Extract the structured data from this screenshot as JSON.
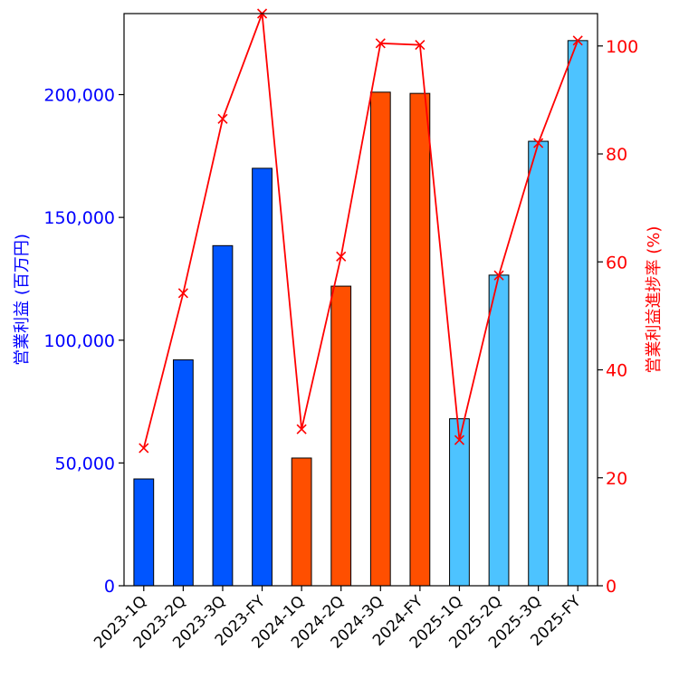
{
  "chart_data": {
    "type": "bar",
    "categories": [
      "2023-1Q",
      "2023-2Q",
      "2023-3Q",
      "2023-FY",
      "2024-1Q",
      "2024-2Q",
      "2024-3Q",
      "2024-FY",
      "2025-1Q",
      "2025-2Q",
      "2025-3Q",
      "2025-FY"
    ],
    "series": [
      {
        "type": "bar",
        "axis": "left",
        "values": [
          43500,
          92000,
          138500,
          170000,
          52000,
          122000,
          201000,
          200500,
          68000,
          126500,
          181000,
          222000
        ],
        "colors": [
          "#0055ff",
          "#0055ff",
          "#0055ff",
          "#0055ff",
          "#ff4f00",
          "#ff4f00",
          "#ff4f00",
          "#ff4f00",
          "#4dc3ff",
          "#4dc3ff",
          "#4dc3ff",
          "#4dc3ff"
        ]
      },
      {
        "type": "line",
        "axis": "right",
        "marker": "x",
        "color": "#ff0000",
        "values": [
          25.5,
          54.2,
          86.5,
          106.0,
          29.0,
          61.0,
          100.5,
          100.2,
          27.0,
          57.5,
          82.0,
          101.0
        ]
      }
    ],
    "ylabel": "営業利益 (百万円)",
    "y2label": "営業利益進捗率 (%)",
    "ylim": [
      0,
      233000
    ],
    "y2lim": [
      0,
      106
    ],
    "yticks": [
      0,
      50000,
      100000,
      150000,
      200000
    ],
    "yticklabels": [
      "0",
      "50,000",
      "100,000",
      "150,000",
      "200,000"
    ],
    "y2ticks": [
      0,
      20,
      40,
      60,
      80,
      100
    ],
    "y2ticklabels": [
      "0",
      "20",
      "40",
      "60",
      "80",
      "100"
    ],
    "ylabel_color": "#0000ff",
    "y2label_color": "#ff0000",
    "grid": false,
    "legend": "none"
  }
}
